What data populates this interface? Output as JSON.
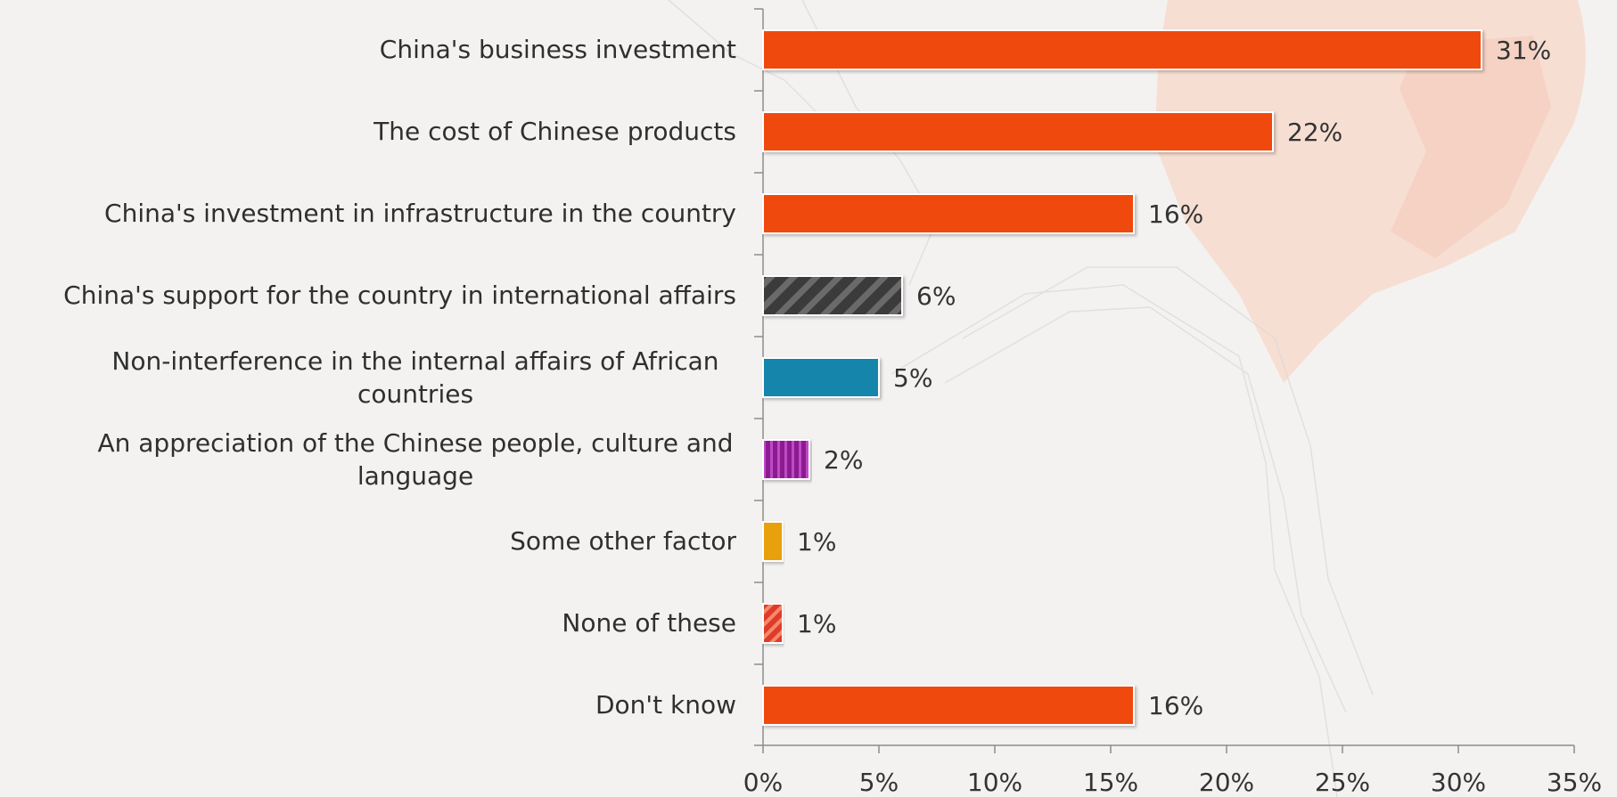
{
  "chart_data": {
    "type": "bar",
    "orientation": "horizontal",
    "title": "",
    "xlabel": "",
    "ylabel": "",
    "categories": [
      "China's business investment",
      "The cost of Chinese products",
      "China's investment in infrastructure in the country",
      "China's support for the country in international affairs",
      "Non-interference in the internal affairs of African countries",
      "An appreciation of the Chinese people, culture and language",
      "Some other factor",
      "None of these",
      "Don't know"
    ],
    "values": [
      31,
      22,
      16,
      6,
      5,
      2,
      1,
      1,
      16
    ],
    "value_labels": [
      "31%",
      "22%",
      "16%",
      "6%",
      "5%",
      "2%",
      "1%",
      "1%",
      "16%"
    ],
    "xlim": [
      0,
      35
    ],
    "xticks": [
      0,
      5,
      10,
      15,
      20,
      25,
      30,
      35
    ],
    "xtick_labels": [
      "0%",
      "5%",
      "10%",
      "15%",
      "20%",
      "25%",
      "30%",
      "35%"
    ],
    "grid": false,
    "legend": "none",
    "bar_styles": [
      {
        "fill": "#f04a0a",
        "pattern": "solid"
      },
      {
        "fill": "#f04a0a",
        "pattern": "solid"
      },
      {
        "fill": "#f04a0a",
        "pattern": "solid"
      },
      {
        "fill": "#3a3a3a",
        "pattern": "diagonal-stripes",
        "pattern_color": "#6a6a6a"
      },
      {
        "fill": "#1485ab",
        "pattern": "solid"
      },
      {
        "fill": "#8b1e8f",
        "pattern": "vertical-stripes",
        "pattern_color": "#c04ac8"
      },
      {
        "fill": "#e8a00a",
        "pattern": "solid"
      },
      {
        "fill": "#e03a2a",
        "pattern": "diagonal-stripes",
        "pattern_color": "#f58a6a"
      },
      {
        "fill": "#f04a0a",
        "pattern": "solid"
      }
    ]
  }
}
